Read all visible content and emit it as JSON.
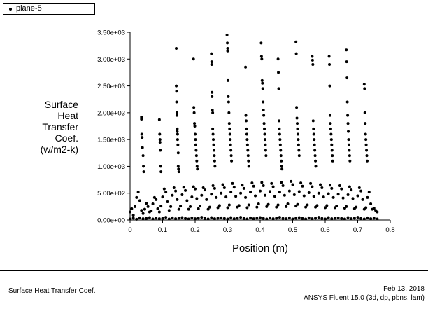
{
  "legend": {
    "series_name": "plane-5"
  },
  "footer": {
    "plot_title": "Surface Heat Transfer Coef.",
    "date": "Feb 13, 2018",
    "solver": "ANSYS Fluent 15.0 (3d, dp, pbns, lam)"
  },
  "chart_data": {
    "type": "scatter",
    "xlabel": "Position (m)",
    "ylabel": [
      "Surface",
      "Heat",
      "Transfer",
      "Coef.",
      "(w/m2-k)"
    ],
    "xlim": [
      0,
      0.8
    ],
    "ylim": [
      0,
      3500
    ],
    "xticks": [
      "0",
      "0.1",
      "0.2",
      "0.3",
      "0.4",
      "0.5",
      "0.6",
      "0.7",
      "0.8"
    ],
    "yticks": [
      "0.00e+00",
      "5.00e+02",
      "1.00e+03",
      "1.50e+03",
      "2.00e+03",
      "2.50e+03",
      "3.00e+03",
      "3.50e+03"
    ],
    "grid": false,
    "legend_position": "top-left",
    "marker_color": "#000000",
    "series": [
      {
        "name": "plane-5",
        "x": [
          0.0,
          0.005,
          0.01,
          0.015,
          0.02,
          0.025,
          0.03,
          0.035,
          0.04,
          0.045,
          0.05,
          0.055,
          0.06,
          0.065,
          0.07,
          0.075,
          0.08,
          0.085,
          0.09,
          0.095,
          0.1,
          0.105,
          0.11,
          0.115,
          0.12,
          0.125,
          0.13,
          0.135,
          0.14,
          0.145,
          0.15,
          0.155,
          0.16,
          0.165,
          0.17,
          0.175,
          0.18,
          0.185,
          0.19,
          0.195,
          0.2,
          0.205,
          0.21,
          0.215,
          0.22,
          0.225,
          0.23,
          0.235,
          0.24,
          0.245,
          0.25,
          0.255,
          0.26,
          0.265,
          0.27,
          0.275,
          0.28,
          0.285,
          0.29,
          0.295,
          0.3,
          0.305,
          0.31,
          0.315,
          0.32,
          0.325,
          0.33,
          0.335,
          0.34,
          0.345,
          0.35,
          0.355,
          0.36,
          0.365,
          0.37,
          0.375,
          0.38,
          0.385,
          0.39,
          0.395,
          0.4,
          0.405,
          0.41,
          0.415,
          0.42,
          0.425,
          0.43,
          0.435,
          0.44,
          0.445,
          0.45,
          0.455,
          0.46,
          0.465,
          0.47,
          0.475,
          0.48,
          0.485,
          0.49,
          0.495,
          0.5,
          0.505,
          0.51,
          0.515,
          0.52,
          0.525,
          0.53,
          0.535,
          0.54,
          0.545,
          0.55,
          0.555,
          0.56,
          0.565,
          0.57,
          0.575,
          0.58,
          0.585,
          0.59,
          0.595,
          0.6,
          0.605,
          0.61,
          0.615,
          0.62,
          0.625,
          0.63,
          0.635,
          0.64,
          0.645,
          0.65,
          0.655,
          0.66,
          0.665,
          0.67,
          0.675,
          0.68,
          0.685,
          0.69,
          0.695,
          0.7,
          0.705,
          0.71,
          0.715,
          0.72,
          0.725,
          0.73,
          0.735,
          0.74,
          0.745,
          0.75,
          0.755,
          0.76,
          0.0,
          0.01,
          0.02,
          0.03,
          0.04,
          0.05,
          0.06,
          0.07,
          0.08,
          0.09,
          0.1,
          0.11,
          0.12,
          0.13,
          0.14,
          0.15,
          0.16,
          0.17,
          0.18,
          0.19,
          0.2,
          0.21,
          0.22,
          0.23,
          0.24,
          0.25,
          0.26,
          0.27,
          0.28,
          0.29,
          0.3,
          0.31,
          0.32,
          0.33,
          0.34,
          0.35,
          0.36,
          0.37,
          0.38,
          0.39,
          0.4,
          0.41,
          0.42,
          0.43,
          0.44,
          0.45,
          0.46,
          0.47,
          0.48,
          0.49,
          0.5,
          0.51,
          0.52,
          0.53,
          0.54,
          0.55,
          0.56,
          0.57,
          0.58,
          0.59,
          0.6,
          0.61,
          0.62,
          0.63,
          0.64,
          0.65,
          0.66,
          0.67,
          0.68,
          0.69,
          0.7,
          0.71,
          0.72,
          0.73,
          0.74,
          0.75,
          0.76,
          0.035,
          0.035,
          0.036,
          0.037,
          0.038,
          0.04,
          0.041,
          0.042,
          0.09,
          0.091,
          0.092,
          0.092,
          0.093,
          0.094,
          0.095,
          0.142,
          0.142,
          0.143,
          0.143,
          0.144,
          0.144,
          0.145,
          0.145,
          0.146,
          0.146,
          0.147,
          0.148,
          0.148,
          0.149,
          0.15,
          0.195,
          0.196,
          0.197,
          0.198,
          0.199,
          0.2,
          0.201,
          0.202,
          0.203,
          0.204,
          0.205,
          0.206,
          0.207,
          0.25,
          0.251,
          0.251,
          0.252,
          0.252,
          0.253,
          0.254,
          0.254,
          0.255,
          0.256,
          0.257,
          0.258,
          0.259,
          0.26,
          0.261,
          0.298,
          0.299,
          0.3,
          0.3,
          0.301,
          0.302,
          0.303,
          0.304,
          0.305,
          0.306,
          0.307,
          0.308,
          0.309,
          0.31,
          0.311,
          0.312,
          0.355,
          0.356,
          0.357,
          0.358,
          0.359,
          0.36,
          0.361,
          0.362,
          0.363,
          0.364,
          0.365,
          0.403,
          0.404,
          0.405,
          0.406,
          0.407,
          0.408,
          0.409,
          0.41,
          0.411,
          0.412,
          0.413,
          0.414,
          0.415,
          0.416,
          0.417,
          0.418,
          0.455,
          0.456,
          0.457,
          0.458,
          0.459,
          0.46,
          0.461,
          0.462,
          0.463,
          0.464,
          0.465,
          0.466,
          0.467,
          0.51,
          0.511,
          0.512,
          0.513,
          0.514,
          0.515,
          0.516,
          0.517,
          0.518,
          0.519,
          0.52,
          0.56,
          0.561,
          0.562,
          0.563,
          0.564,
          0.565,
          0.566,
          0.567,
          0.568,
          0.569,
          0.57,
          0.571,
          0.612,
          0.613,
          0.614,
          0.615,
          0.616,
          0.617,
          0.618,
          0.619,
          0.62,
          0.621,
          0.622,
          0.623,
          0.665,
          0.666,
          0.667,
          0.668,
          0.669,
          0.67,
          0.671,
          0.672,
          0.673,
          0.674,
          0.675,
          0.676,
          0.72,
          0.721,
          0.722,
          0.723,
          0.724,
          0.725,
          0.726,
          0.727,
          0.728,
          0.729
        ],
        "y": [
          150,
          210,
          90,
          250,
          420,
          520,
          360,
          180,
          120,
          200,
          310,
          250,
          150,
          170,
          300,
          420,
          380,
          210,
          150,
          260,
          430,
          580,
          520,
          340,
          180,
          250,
          460,
          600,
          540,
          380,
          200,
          260,
          470,
          610,
          550,
          360,
          200,
          250,
          430,
          620,
          580,
          400,
          210,
          260,
          460,
          600,
          560,
          380,
          200,
          240,
          480,
          640,
          590,
          420,
          230,
          270,
          500,
          660,
          600,
          430,
          230,
          280,
          520,
          680,
          610,
          440,
          240,
          270,
          500,
          650,
          590,
          420,
          230,
          280,
          520,
          690,
          630,
          450,
          240,
          300,
          540,
          700,
          640,
          460,
          250,
          290,
          530,
          680,
          620,
          440,
          240,
          280,
          520,
          700,
          640,
          460,
          250,
          300,
          540,
          720,
          660,
          470,
          260,
          290,
          530,
          690,
          630,
          450,
          240,
          280,
          510,
          680,
          620,
          440,
          240,
          270,
          500,
          660,
          600,
          430,
          230,
          270,
          490,
          650,
          590,
          420,
          230,
          260,
          480,
          640,
          580,
          410,
          220,
          250,
          470,
          620,
          560,
          400,
          210,
          240,
          450,
          600,
          540,
          380,
          200,
          230,
          420,
          520,
          300,
          200,
          220,
          180,
          150,
          20,
          35,
          15,
          40,
          25,
          30,
          45,
          20,
          35,
          25,
          30,
          50,
          20,
          40,
          25,
          35,
          45,
          30,
          20,
          40,
          25,
          35,
          50,
          30,
          20,
          45,
          25,
          35,
          40,
          30,
          20,
          45,
          25,
          35,
          50,
          30,
          20,
          40,
          25,
          35,
          45,
          30,
          20,
          40,
          25,
          35,
          50,
          30,
          25,
          40,
          20,
          35,
          45,
          30,
          20,
          40,
          25,
          35,
          50,
          30,
          20,
          45,
          25,
          35,
          40,
          30,
          20,
          45,
          25,
          35,
          50,
          30,
          20,
          40,
          25,
          35,
          20,
          1920,
          1880,
          1600,
          1540,
          1350,
          1200,
          1000,
          900,
          1870,
          1600,
          1500,
          1450,
          1300,
          1000,
          900,
          3200,
          2500,
          2400,
          2200,
          2000,
          1950,
          1700,
          1650,
          1600,
          1500,
          1400,
          1250,
          1000,
          950,
          900,
          3000,
          2100,
          2000,
          1800,
          1750,
          1600,
          1500,
          1400,
          1300,
          1200,
          1100,
          1000,
          950,
          3100,
          2950,
          2900,
          2380,
          2300,
          2050,
          2000,
          1700,
          1600,
          1500,
          1400,
          1300,
          1200,
          1100,
          1000,
          3450,
          3300,
          3200,
          3150,
          2600,
          2300,
          2200,
          2000,
          1800,
          1700,
          1600,
          1500,
          1400,
          1300,
          1200,
          1100,
          2850,
          1950,
          1850,
          1700,
          1600,
          1500,
          1400,
          1300,
          1200,
          1100,
          1000,
          3300,
          3050,
          3000,
          2600,
          2550,
          2450,
          2200,
          2050,
          1950,
          1800,
          1700,
          1600,
          1500,
          1400,
          1300,
          1200,
          3000,
          2750,
          2450,
          1850,
          1700,
          1600,
          1500,
          1400,
          1300,
          1200,
          1100,
          1000,
          950,
          3320,
          3100,
          2100,
          1900,
          1800,
          1700,
          1600,
          1500,
          1400,
          1300,
          1200,
          3050,
          2980,
          2900,
          1850,
          1700,
          1600,
          1500,
          1400,
          1300,
          1200,
          1100,
          1000,
          3050,
          2900,
          2500,
          1950,
          1800,
          1700,
          1600,
          1500,
          1400,
          1300,
          1200,
          1100,
          3170,
          2950,
          2650,
          2200,
          1950,
          1800,
          1650,
          1500,
          1400,
          1300,
          1200,
          1100,
          2530,
          2450,
          2000,
          1800,
          1600,
          1500,
          1400,
          1300,
          1200,
          1100
        ]
      }
    ]
  }
}
